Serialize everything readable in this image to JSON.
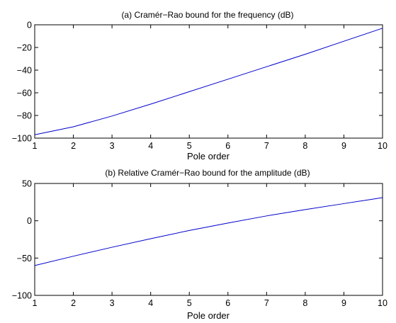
{
  "chart_data": [
    {
      "type": "line",
      "title": "(a) Cramér−Rao bound for the frequency (dB)",
      "xlabel": "Pole order",
      "ylabel": "",
      "xlim": [
        1,
        10
      ],
      "ylim": [
        -100,
        0
      ],
      "xticks": [
        1,
        2,
        3,
        4,
        5,
        6,
        7,
        8,
        9,
        10
      ],
      "yticks": [
        0,
        -20,
        -40,
        -60,
        -80,
        -100
      ],
      "xtick_labels": [
        "1",
        "2",
        "3",
        "4",
        "5",
        "6",
        "7",
        "8",
        "9",
        "10"
      ],
      "ytick_labels": [
        "0",
        "−20",
        "−40",
        "−60",
        "−80",
        "−100"
      ],
      "grid": false,
      "series": [
        {
          "color": "#0000cc",
          "x": [
            1,
            2,
            3,
            4,
            5,
            6,
            7,
            8,
            9,
            10
          ],
          "y": [
            -97,
            -90,
            -80.5,
            -70,
            -59,
            -48,
            -37,
            -26,
            -14.5,
            -3
          ]
        }
      ]
    },
    {
      "type": "line",
      "title": "(b) Relative Cramér−Rao bound for the amplitude (dB)",
      "xlabel": "Pole order",
      "ylabel": "",
      "xlim": [
        1,
        10
      ],
      "ylim": [
        -100,
        50
      ],
      "xticks": [
        1,
        2,
        3,
        4,
        5,
        6,
        7,
        8,
        9,
        10
      ],
      "yticks": [
        50,
        0,
        -50,
        -100
      ],
      "xtick_labels": [
        "1",
        "2",
        "3",
        "4",
        "5",
        "6",
        "7",
        "8",
        "9",
        "10"
      ],
      "ytick_labels": [
        "50",
        "0",
        "−50",
        "−100"
      ],
      "grid": false,
      "series": [
        {
          "color": "#0000cc",
          "x": [
            1,
            2,
            3,
            4,
            5,
            6,
            7,
            8,
            9,
            10
          ],
          "y": [
            -60,
            -47.5,
            -35.5,
            -24,
            -13,
            -3,
            6.5,
            15,
            23,
            31
          ]
        }
      ]
    }
  ]
}
